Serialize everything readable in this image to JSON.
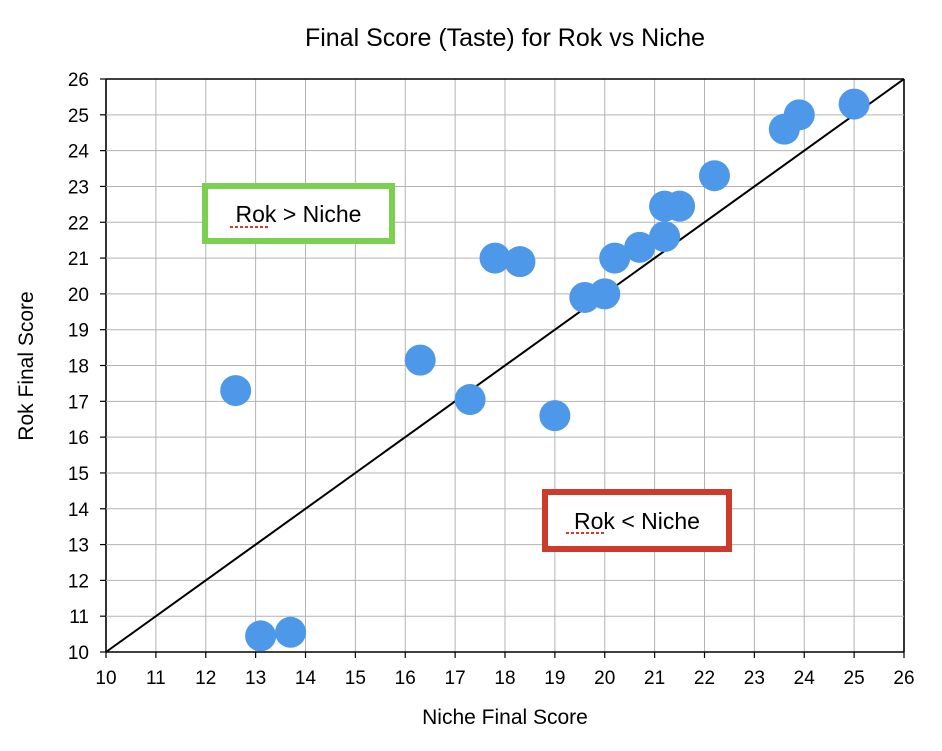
{
  "chart_data": {
    "type": "scatter",
    "title": "Final Score (Taste) for Rok vs Niche",
    "xlabel": "Niche Final Score",
    "ylabel": "Rok Final Score",
    "xlim": [
      10,
      26
    ],
    "ylim": [
      10,
      26
    ],
    "xticks": [
      "10",
      "11",
      "12",
      "13",
      "14",
      "15",
      "16",
      "17",
      "18",
      "19",
      "20",
      "21",
      "22",
      "23",
      "24",
      "25",
      "26"
    ],
    "yticks": [
      "10",
      "11",
      "12",
      "13",
      "14",
      "15",
      "16",
      "17",
      "18",
      "19",
      "20",
      "21",
      "22",
      "23",
      "24",
      "25",
      "26"
    ],
    "grid": true,
    "point_color": "#4d98e8",
    "reference_line": {
      "from": [
        10,
        10
      ],
      "to": [
        26,
        26
      ],
      "color": "#000000"
    },
    "points": [
      {
        "x": 12.6,
        "y": 17.3
      },
      {
        "x": 13.1,
        "y": 10.45
      },
      {
        "x": 13.7,
        "y": 10.55
      },
      {
        "x": 16.3,
        "y": 18.15
      },
      {
        "x": 17.3,
        "y": 17.05
      },
      {
        "x": 17.8,
        "y": 21.0
      },
      {
        "x": 18.3,
        "y": 20.9
      },
      {
        "x": 19.0,
        "y": 16.6
      },
      {
        "x": 19.6,
        "y": 19.9
      },
      {
        "x": 20.0,
        "y": 20.0
      },
      {
        "x": 20.2,
        "y": 21.0
      },
      {
        "x": 20.7,
        "y": 21.3
      },
      {
        "x": 21.2,
        "y": 21.6
      },
      {
        "x": 21.2,
        "y": 22.45
      },
      {
        "x": 21.5,
        "y": 22.45
      },
      {
        "x": 22.2,
        "y": 23.3
      },
      {
        "x": 23.6,
        "y": 24.6
      },
      {
        "x": 23.9,
        "y": 25.0
      },
      {
        "x": 25.0,
        "y": 25.3
      }
    ],
    "annotations": [
      {
        "id": "rok-greater",
        "text": "Rok > Niche",
        "border_color": "#7bd04f"
      },
      {
        "id": "rok-less",
        "text": "Rok < Niche",
        "border_color": "#cc3b2b"
      }
    ]
  }
}
